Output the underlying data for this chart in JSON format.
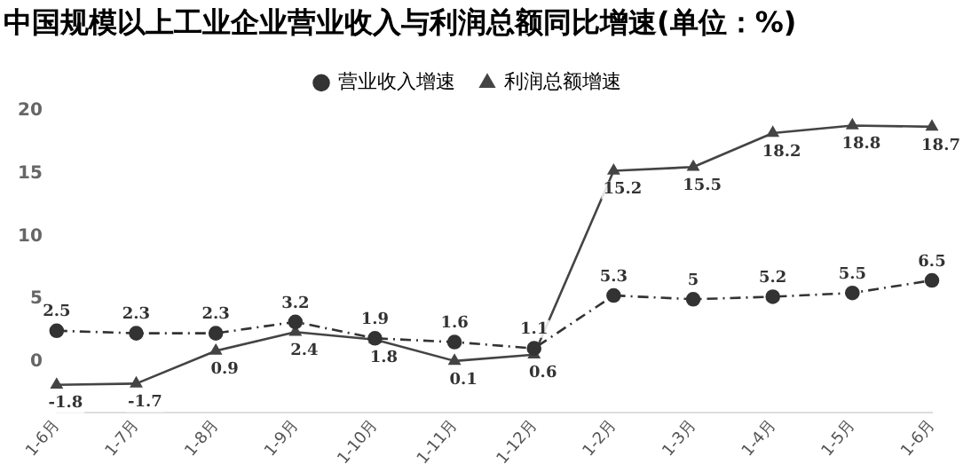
{
  "chart_data": {
    "type": "line",
    "title": "中国规模以上工业企业营业收入与利润总额同比增速(单位：%)",
    "categories": [
      "1-6月",
      "1-7月",
      "1-8月",
      "1-9月",
      "1-10月",
      "1-11月",
      "1-12月",
      "1-2月",
      "1-3月",
      "1-4月",
      "1-5月",
      "1-6月"
    ],
    "series": [
      {
        "name": "营业收入增速",
        "color": "#333333",
        "marker": "circle",
        "line_style": "dotted",
        "values": [
          2.5,
          2.3,
          2.3,
          3.2,
          1.9,
          1.6,
          1.1,
          5.3,
          5,
          5.2,
          5.5,
          6.5
        ]
      },
      {
        "name": "利润总额增速",
        "color": "#444444",
        "marker": "triangle",
        "line_style": "solid",
        "values": [
          -1.8,
          -1.7,
          0.9,
          2.4,
          1.8,
          0.1,
          0.6,
          15.2,
          15.5,
          18.2,
          18.8,
          18.7
        ]
      }
    ],
    "ylim": [
      -4,
      20
    ],
    "yticks": [
      0,
      5,
      10,
      15,
      20
    ],
    "grid": false,
    "legend": "top",
    "data_labels": true
  }
}
